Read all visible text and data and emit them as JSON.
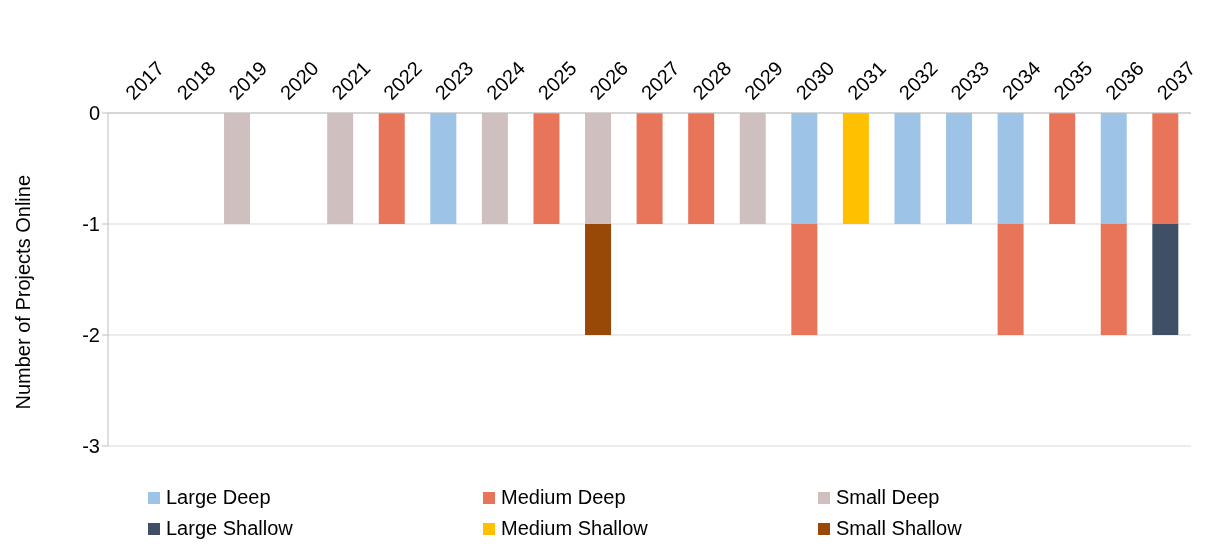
{
  "chart_data": {
    "type": "bar",
    "stacked": true,
    "ylabel": "Number of Projects Online",
    "categories": [
      "2017",
      "2018",
      "2019",
      "2020",
      "2021",
      "2022",
      "2023",
      "2024",
      "2025",
      "2026",
      "2027",
      "2028",
      "2029",
      "2030",
      "2031",
      "2032",
      "2033",
      "2034",
      "2035",
      "2036",
      "2037"
    ],
    "series": [
      {
        "name": "Large Deep",
        "color": "#9dc3e6",
        "values": [
          null,
          null,
          null,
          null,
          null,
          null,
          -1,
          null,
          null,
          null,
          null,
          null,
          null,
          -1,
          null,
          -1,
          -1,
          -1,
          null,
          -1,
          null
        ]
      },
      {
        "name": "Medium Deep",
        "color": "#e8745a",
        "values": [
          null,
          null,
          null,
          null,
          null,
          -1,
          null,
          null,
          -1,
          null,
          -1,
          -1,
          null,
          -1,
          null,
          null,
          null,
          -1,
          -1,
          -1,
          -1
        ]
      },
      {
        "name": "Small Deep",
        "color": "#d0bfbf",
        "values": [
          null,
          null,
          -1,
          null,
          -1,
          null,
          null,
          -1,
          null,
          -1,
          null,
          null,
          -1,
          null,
          null,
          null,
          null,
          null,
          null,
          null,
          null
        ]
      },
      {
        "name": "Large Shallow",
        "color": "#3f4f66",
        "values": [
          null,
          null,
          null,
          null,
          null,
          null,
          null,
          null,
          null,
          null,
          null,
          null,
          null,
          null,
          null,
          null,
          null,
          null,
          null,
          null,
          -1
        ]
      },
      {
        "name": "Medium Shallow",
        "color": "#ffc000",
        "values": [
          null,
          null,
          null,
          null,
          null,
          null,
          null,
          null,
          null,
          null,
          null,
          null,
          null,
          null,
          -1,
          null,
          null,
          null,
          null,
          null,
          null
        ]
      },
      {
        "name": "Small Shallow",
        "color": "#984807",
        "values": [
          null,
          null,
          null,
          null,
          null,
          null,
          null,
          null,
          null,
          -1,
          null,
          null,
          null,
          null,
          null,
          null,
          null,
          null,
          null,
          null,
          null
        ]
      }
    ],
    "ylim": [
      -3,
      0
    ],
    "yticks": [
      0,
      -1,
      -2,
      -3
    ],
    "grid": "y",
    "legend": "bottom"
  }
}
